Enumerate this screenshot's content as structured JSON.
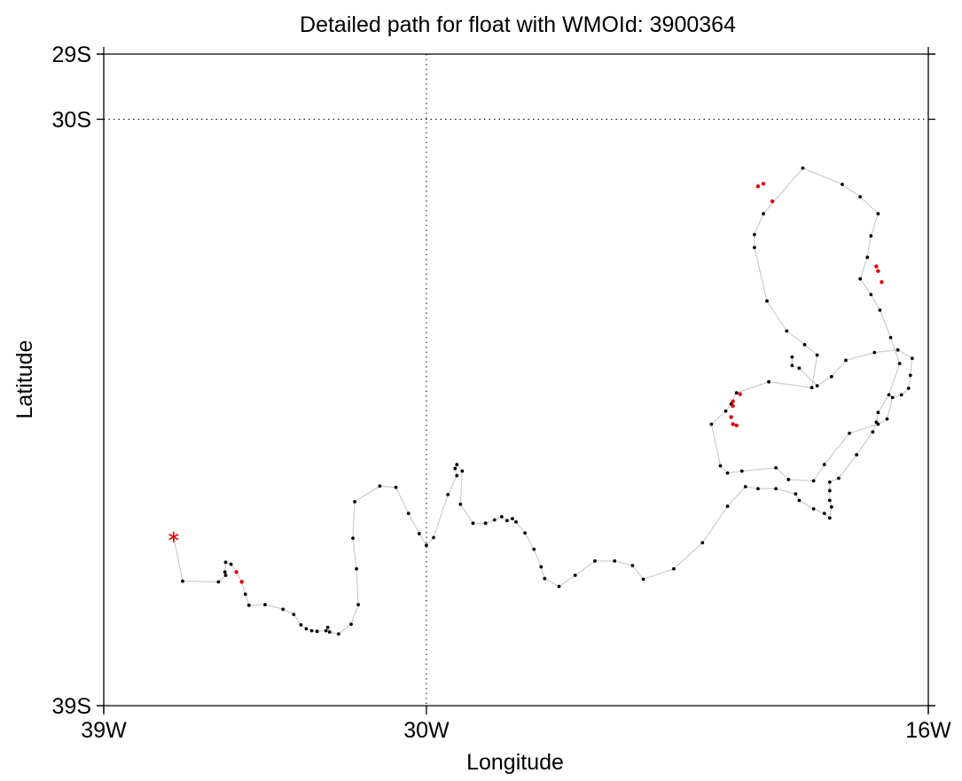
{
  "chart_data": {
    "type": "scatter",
    "title": "Detailed path for float with WMOId: 3900364",
    "xlabel": "Longitude",
    "ylabel": "Latitude",
    "xlim": [
      -39,
      -16
    ],
    "ylim": [
      -39,
      -29
    ],
    "x_ticks": [
      {
        "value": -39,
        "label": "39W"
      },
      {
        "value": -30,
        "label": "30W"
      },
      {
        "value": -16,
        "label": "16W"
      }
    ],
    "y_ticks": [
      {
        "value": -29,
        "label": "29S"
      },
      {
        "value": -30,
        "label": "30S"
      },
      {
        "value": -39,
        "label": "39S"
      }
    ],
    "grid": {
      "x": [
        -30
      ],
      "y": [
        -30
      ],
      "style": "dotted"
    },
    "colors": {
      "path": "#c8c8c8",
      "profile": "#000000",
      "highlight": "#e00000",
      "start": "#e00000",
      "axis": "#000000"
    },
    "start_marker": {
      "lon": -37.05,
      "lat": -36.41,
      "symbol": "*"
    },
    "track": [
      [
        -37.05,
        -36.41
      ],
      [
        -36.8,
        -37.09
      ],
      [
        -35.8,
        -37.1
      ],
      [
        -35.6,
        -37.0
      ],
      [
        -35.62,
        -36.95
      ],
      [
        -35.6,
        -36.8
      ],
      [
        -35.45,
        -36.83
      ],
      [
        -35.3,
        -36.95
      ],
      [
        -35.15,
        -37.1
      ],
      [
        -35.05,
        -37.29
      ],
      [
        -34.95,
        -37.46
      ],
      [
        -34.5,
        -37.45
      ],
      [
        -34.0,
        -37.52
      ],
      [
        -33.7,
        -37.6
      ],
      [
        -33.5,
        -37.76
      ],
      [
        -33.35,
        -37.82
      ],
      [
        -33.2,
        -37.85
      ],
      [
        -33.05,
        -37.86
      ],
      [
        -32.8,
        -37.85
      ],
      [
        -32.75,
        -37.8
      ],
      [
        -32.7,
        -37.87
      ],
      [
        -32.45,
        -37.9
      ],
      [
        -32.1,
        -37.75
      ],
      [
        -31.9,
        -37.45
      ],
      [
        -31.95,
        -36.9
      ],
      [
        -32.05,
        -36.43
      ],
      [
        -32.0,
        -35.87
      ],
      [
        -31.3,
        -35.63
      ],
      [
        -30.85,
        -35.65
      ],
      [
        -30.5,
        -36.05
      ],
      [
        -30.2,
        -36.36
      ],
      [
        -30.0,
        -36.54
      ],
      [
        -29.8,
        -36.42
      ],
      [
        -29.4,
        -35.76
      ],
      [
        -29.15,
        -35.47
      ],
      [
        -29.2,
        -35.36
      ],
      [
        -29.15,
        -35.3
      ],
      [
        -29.0,
        -35.4
      ],
      [
        -29.05,
        -35.91
      ],
      [
        -28.7,
        -36.2
      ],
      [
        -28.35,
        -36.2
      ],
      [
        -28.1,
        -36.15
      ],
      [
        -27.9,
        -36.1
      ],
      [
        -27.75,
        -36.16
      ],
      [
        -27.6,
        -36.13
      ],
      [
        -27.5,
        -36.18
      ],
      [
        -27.25,
        -36.35
      ],
      [
        -27.0,
        -36.6
      ],
      [
        -26.8,
        -36.87
      ],
      [
        -26.7,
        -37.05
      ],
      [
        -26.3,
        -37.17
      ],
      [
        -25.85,
        -37.0
      ],
      [
        -25.3,
        -36.78
      ],
      [
        -24.75,
        -36.78
      ],
      [
        -24.25,
        -36.85
      ],
      [
        -23.95,
        -37.06
      ],
      [
        -23.1,
        -36.9
      ],
      [
        -22.3,
        -36.5
      ],
      [
        -21.6,
        -35.94
      ],
      [
        -21.1,
        -35.64
      ],
      [
        -20.75,
        -35.67
      ],
      [
        -20.25,
        -35.67
      ],
      [
        -19.7,
        -35.75
      ],
      [
        -19.6,
        -35.85
      ],
      [
        -19.2,
        -35.98
      ],
      [
        -18.9,
        -36.05
      ],
      [
        -18.75,
        -36.12
      ],
      [
        -18.7,
        -35.95
      ],
      [
        -18.75,
        -35.85
      ],
      [
        -18.75,
        -35.7
      ],
      [
        -18.75,
        -35.57
      ],
      [
        -18.5,
        -35.51
      ],
      [
        -18.0,
        -35.15
      ],
      [
        -17.55,
        -34.8
      ],
      [
        -17.45,
        -34.65
      ],
      [
        -17.4,
        -34.5
      ],
      [
        -17.1,
        -34.23
      ],
      [
        -16.8,
        -33.75
      ],
      [
        -17.05,
        -33.35
      ],
      [
        -17.35,
        -32.93
      ],
      [
        -17.6,
        -32.69
      ],
      [
        -17.9,
        -32.45
      ],
      [
        -17.7,
        -32.12
      ],
      [
        -17.6,
        -31.79
      ],
      [
        -17.4,
        -31.45
      ],
      [
        -17.9,
        -31.19
      ],
      [
        -18.4,
        -31.0
      ],
      [
        -19.5,
        -30.75
      ],
      [
        -20.6,
        -31.45
      ],
      [
        -20.85,
        -31.77
      ],
      [
        -20.85,
        -31.97
      ],
      [
        -20.5,
        -32.79
      ],
      [
        -19.95,
        -33.25
      ],
      [
        -19.45,
        -33.46
      ],
      [
        -19.1,
        -33.62
      ],
      [
        -19.25,
        -34.12
      ],
      [
        -20.45,
        -34.03
      ],
      [
        -21.35,
        -34.2
      ],
      [
        -21.5,
        -34.37
      ],
      [
        -21.65,
        -34.48
      ],
      [
        -22.05,
        -34.68
      ],
      [
        -21.8,
        -35.32
      ],
      [
        -21.6,
        -35.43
      ],
      [
        -21.2,
        -35.4
      ],
      [
        -20.25,
        -35.35
      ],
      [
        -19.9,
        -35.53
      ],
      [
        -19.2,
        -35.55
      ],
      [
        -18.9,
        -35.3
      ],
      [
        -18.2,
        -34.82
      ],
      [
        -17.4,
        -34.68
      ],
      [
        -17.15,
        -34.6
      ],
      [
        -17.0,
        -34.27
      ],
      [
        -16.75,
        -34.23
      ],
      [
        -16.55,
        -34.13
      ],
      [
        -16.5,
        -33.93
      ],
      [
        -16.45,
        -33.67
      ],
      [
        -16.85,
        -33.54
      ],
      [
        -17.5,
        -33.58
      ],
      [
        -18.3,
        -33.7
      ],
      [
        -18.7,
        -33.95
      ],
      [
        -19.1,
        -34.09
      ],
      [
        -19.6,
        -33.82
      ],
      [
        -19.8,
        -33.78
      ],
      [
        -19.8,
        -33.65
      ]
    ],
    "highlight_points": [
      [
        -20.75,
        -31.03
      ],
      [
        -20.6,
        -30.99
      ],
      [
        -20.35,
        -31.26
      ],
      [
        -17.45,
        -32.26
      ],
      [
        -17.4,
        -32.33
      ],
      [
        -17.3,
        -32.5
      ],
      [
        -21.25,
        -34.22
      ],
      [
        -21.45,
        -34.33
      ],
      [
        -21.45,
        -34.4
      ],
      [
        -21.5,
        -34.57
      ],
      [
        -21.45,
        -34.68
      ],
      [
        -21.35,
        -34.7
      ],
      [
        -35.3,
        -36.95
      ],
      [
        -35.15,
        -37.1
      ]
    ]
  }
}
